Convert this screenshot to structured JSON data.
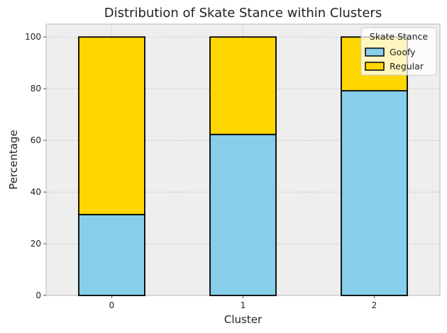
{
  "chart_data": {
    "type": "bar",
    "stacked": true,
    "title": "Distribution of Skate Stance within Clusters",
    "xlabel": "Cluster",
    "ylabel": "Percentage",
    "categories": [
      "0",
      "1",
      "2"
    ],
    "series": [
      {
        "name": "Goofy",
        "values": [
          31.3,
          62.3,
          79.2
        ],
        "color": "#87CEEB"
      },
      {
        "name": "Regular",
        "values": [
          68.7,
          37.7,
          20.8
        ],
        "color": "#FFD700"
      }
    ],
    "ylim": [
      0,
      105
    ],
    "yticks": [
      0,
      20,
      40,
      60,
      80,
      100
    ],
    "grid": true,
    "legend": {
      "title": "Skate Stance",
      "placement": "top-right"
    },
    "colors": {
      "background": "#EEEEEE",
      "grid": "#B0B0B0",
      "edge": "#000000"
    }
  }
}
